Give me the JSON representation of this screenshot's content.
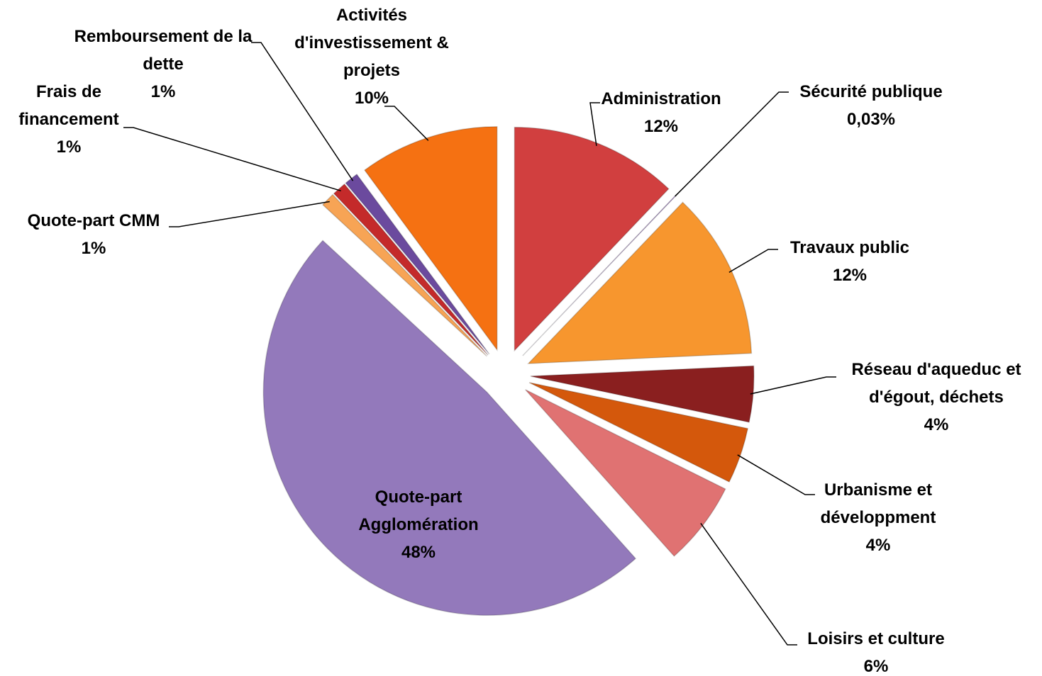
{
  "chart_data": {
    "type": "pie",
    "categories": [
      "Administration",
      "Sécurité publique",
      "Travaux public",
      "Réseau d'aqueduc et d'égout, déchets",
      "Urbanisme et développment",
      "Loisirs et culture",
      "Quote-part Agglomération",
      "Quote-part CMM",
      "Frais de financement",
      "Remboursement de la dette",
      "Activités d'investissement & projets"
    ],
    "values": [
      12,
      0.03,
      12,
      4,
      4,
      6,
      48,
      1,
      1,
      1,
      10
    ],
    "value_labels": [
      "12%",
      "0,03%",
      "12%",
      "4%",
      "4%",
      "6%",
      "48%",
      "1%",
      "1%",
      "1%",
      "10%"
    ],
    "colors": [
      "#d13f3f",
      "#7b52a8",
      "#f7962e",
      "#8a1f1f",
      "#d4580c",
      "#e07272",
      "#9379bb",
      "#f7a455",
      "#c42a2a",
      "#6b4a9e",
      "#f57112"
    ]
  }
}
